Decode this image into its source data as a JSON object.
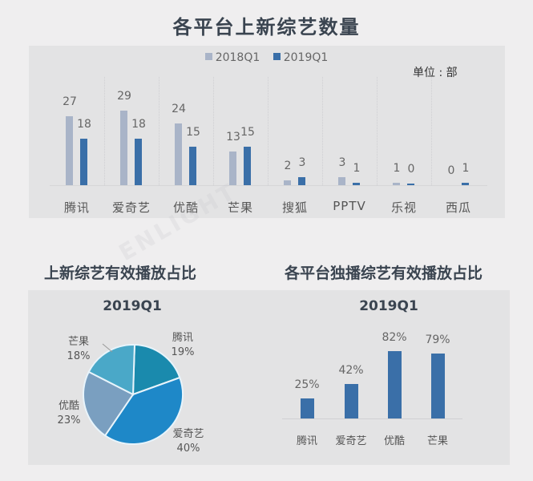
{
  "title": "各平台上新综艺数量",
  "watermark": "ENLIGHT",
  "chart_data": [
    {
      "type": "bar",
      "title": "各平台上新综艺数量",
      "unit_label": "单位 : 部",
      "categories": [
        "腾讯",
        "爱奇艺",
        "优酷",
        "芒果",
        "搜狐",
        "PPTV",
        "乐视",
        "西瓜"
      ],
      "series": [
        {
          "name": "2018Q1",
          "color": "#a9b4c8",
          "values": [
            27,
            29,
            24,
            13,
            2,
            3,
            1,
            0
          ]
        },
        {
          "name": "2019Q1",
          "color": "#3a6fa8",
          "values": [
            18,
            18,
            15,
            15,
            3,
            1,
            0,
            1
          ]
        }
      ],
      "legend_position": "top",
      "grid": "vertical dotted separators",
      "ylim": [
        0,
        32
      ]
    },
    {
      "type": "pie",
      "title": "上新综艺有效播放占比",
      "subtitle": "2019Q1",
      "slices": [
        {
          "label": "腾讯",
          "value": 19,
          "display": "19%",
          "color": "#1a8aad"
        },
        {
          "label": "爱奇艺",
          "value": 40,
          "display": "40%",
          "color": "#1e88c8"
        },
        {
          "label": "优酷",
          "value": 23,
          "display": "23%",
          "color": "#7a9fc0"
        },
        {
          "label": "芒果",
          "value": 18,
          "display": "18%",
          "color": "#4aa8c8"
        }
      ]
    },
    {
      "type": "bar",
      "title": "各平台独播综艺有效播放占比",
      "subtitle": "2019Q1",
      "categories": [
        "腾讯",
        "爱奇艺",
        "优酷",
        "芒果"
      ],
      "values": [
        25,
        42,
        82,
        79
      ],
      "labels": [
        "25%",
        "42%",
        "82%",
        "79%"
      ],
      "color": "#3a6fa8",
      "ylim": [
        0,
        100
      ]
    }
  ],
  "top": {
    "legend": [
      {
        "label": "2018Q1",
        "color": "#a9b4c8"
      },
      {
        "label": "2019Q1",
        "color": "#3a6fa8"
      }
    ],
    "unit": "单位 : 部",
    "categories": [
      "腾讯",
      "爱奇艺",
      "优酷",
      "芒果",
      "搜狐",
      "PPTV",
      "乐视",
      "西瓜"
    ],
    "v2018": [
      "27",
      "29",
      "24",
      "13",
      "2",
      "3",
      "1",
      "0"
    ],
    "v2019": [
      "18",
      "18",
      "15",
      "15",
      "3",
      "1",
      "0",
      "1"
    ]
  },
  "left": {
    "title": "上新综艺有效播放占比",
    "period": "2019Q1",
    "slices": [
      {
        "label": "腾讯",
        "pct": "19%"
      },
      {
        "label": "爱奇艺",
        "pct": "40%"
      },
      {
        "label": "优酷",
        "pct": "23%"
      },
      {
        "label": "芒果",
        "pct": "18%"
      }
    ]
  },
  "right": {
    "title": "各平台独播综艺有效播放占比",
    "period": "2019Q1",
    "categories": [
      "腾讯",
      "爱奇艺",
      "优酷",
      "芒果"
    ],
    "labels": [
      "25%",
      "42%",
      "82%",
      "79%"
    ]
  }
}
